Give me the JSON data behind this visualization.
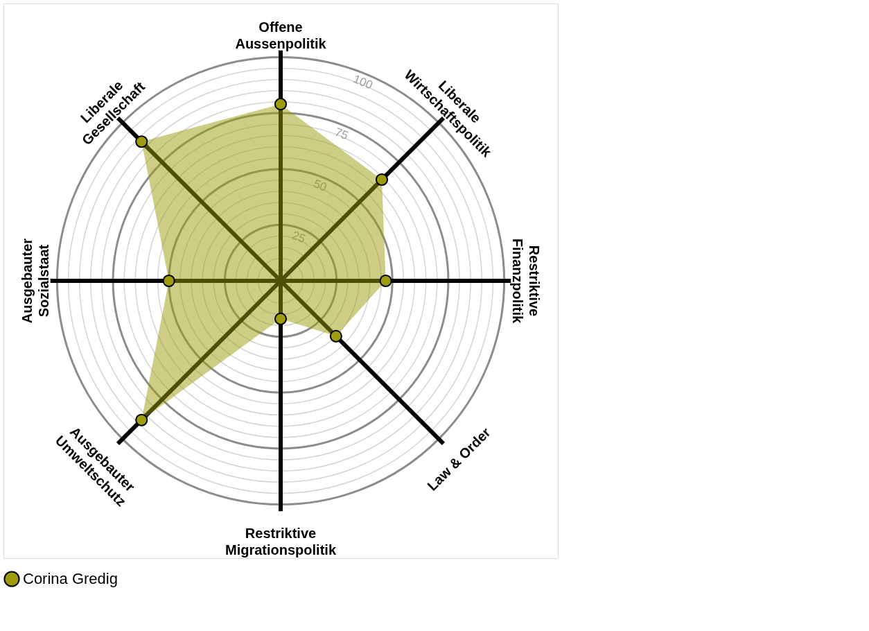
{
  "chart_data": {
    "type": "radar",
    "categories": [
      "Offene\nAussenpolitik",
      "Liberale\nWirtschaftspolitik",
      "Restriktive\nFinanzpolitik",
      "Law & Order",
      "Restriktive\nMigrationspolitik",
      "Ausgebauter\nUmweltschutz",
      "Ausgebauter\nSozialstaat",
      "Liberale\nGesellschaft"
    ],
    "series": [
      {
        "name": "Corina Gredig",
        "color": "#9c9c0c",
        "values": [
          79,
          64,
          47,
          35,
          17,
          88,
          50,
          88
        ]
      }
    ],
    "ylim": [
      0,
      100
    ],
    "yticks": [
      25,
      50,
      75,
      100
    ],
    "grid": true,
    "marker": "circle",
    "legend": "bottom"
  }
}
